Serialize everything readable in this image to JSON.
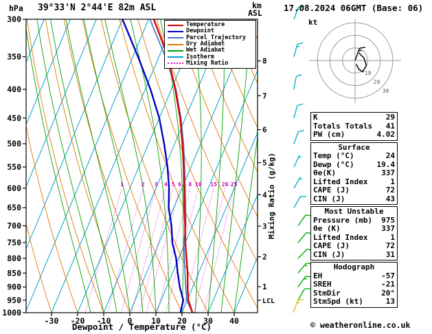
{
  "header": {
    "pressure_unit": "hPa",
    "title": "39°33'N 2°44'E 82m ASL",
    "km_label": "km",
    "asl_label": "ASL",
    "datetime": "17.08.2024 06GMT (Base: 06)"
  },
  "chart_data": {
    "type": "skewt_log_p",
    "title": "39°33'N 2°44'E 82m ASL",
    "xlabel": "Dewpoint / Temperature (°C)",
    "pressure_ticks": [
      300,
      350,
      400,
      450,
      500,
      550,
      600,
      650,
      700,
      750,
      800,
      850,
      900,
      950,
      1000
    ],
    "temp_ticks": [
      -30,
      -20,
      -10,
      0,
      10,
      20,
      30,
      40
    ],
    "pressure_range": [
      300,
      1000
    ],
    "km_ticks": [
      1,
      2,
      3,
      4,
      5,
      6,
      7,
      8
    ],
    "lcl_label": "LCL",
    "lcl_pressure": 950,
    "mixing_ratio_label": "Mixing Ratio (g/kg)",
    "mixing_ratio_values": [
      1,
      2,
      3,
      4,
      5,
      6,
      8,
      10,
      15,
      20,
      25
    ],
    "isotherm_step": 10,
    "colors": {
      "temperature": "#dd0000",
      "dewpoint": "#0000bb",
      "parcel": "#4477cc",
      "dry_adiabat": "#dd7700",
      "wet_adiabat": "#00a000",
      "isotherm": "#00a0c8",
      "mixing_ratio": "#cc00bb",
      "barb_upper": "#00b4c8",
      "barb_low": "#00aa00",
      "barb_sfc": "#d4c800"
    },
    "legend": [
      {
        "label": "Temperature",
        "color": "#dd0000",
        "style": "solid"
      },
      {
        "label": "Dewpoint",
        "color": "#0000bb",
        "style": "solid"
      },
      {
        "label": "Parcel Trajectory",
        "color": "#4477cc",
        "style": "solid"
      },
      {
        "label": "Dry Adiabat",
        "color": "#dd7700",
        "style": "solid"
      },
      {
        "label": "Wet Adiabat",
        "color": "#00a000",
        "style": "solid"
      },
      {
        "label": "Isotherm",
        "color": "#00a0c8",
        "style": "solid"
      },
      {
        "label": "Mixing Ratio",
        "color": "#cc00bb",
        "style": "dotted"
      }
    ],
    "sounding": {
      "pressure": [
        1000,
        950,
        900,
        850,
        800,
        750,
        700,
        650,
        600,
        550,
        500,
        450,
        400,
        350,
        300
      ],
      "temperature": [
        24,
        20.4,
        18,
        15.8,
        13,
        10,
        7.2,
        4,
        0.8,
        -2.8,
        -7,
        -12,
        -18.5,
        -26.5,
        -38
      ],
      "dewpoint": [
        19.4,
        18.5,
        15,
        12,
        9,
        5,
        2,
        -2,
        -5,
        -9,
        -14,
        -20,
        -28,
        -38,
        -50
      ]
    },
    "parcel": {
      "pressure": [
        1000,
        950,
        900,
        850,
        800,
        750,
        700,
        650,
        600,
        550,
        500,
        450,
        400,
        350,
        300
      ],
      "temperature": [
        24,
        19.8,
        17.3,
        14.8,
        12.2,
        9.4,
        7.5,
        4.5,
        1.2,
        -2.4,
        -6.6,
        -11.7,
        -18.2,
        -27.5,
        -39.5
      ]
    },
    "wind_barbs": [
      {
        "p": 300,
        "spd": 15,
        "dir": 20,
        "level": "upper"
      },
      {
        "p": 350,
        "spd": 15,
        "dir": 15,
        "level": "upper"
      },
      {
        "p": 400,
        "spd": 10,
        "dir": 10,
        "level": "upper"
      },
      {
        "p": 450,
        "spd": 10,
        "dir": 15,
        "level": "upper"
      },
      {
        "p": 500,
        "spd": 10,
        "dir": 20,
        "level": "upper"
      },
      {
        "p": 550,
        "spd": 5,
        "dir": 25,
        "level": "upper"
      },
      {
        "p": 600,
        "spd": 5,
        "dir": 30,
        "level": "upper"
      },
      {
        "p": 650,
        "spd": 10,
        "dir": 30,
        "level": "upper"
      },
      {
        "p": 700,
        "spd": 10,
        "dir": 35,
        "level": "low"
      },
      {
        "p": 750,
        "spd": 10,
        "dir": 40,
        "level": "low"
      },
      {
        "p": 800,
        "spd": 10,
        "dir": 45,
        "level": "low"
      },
      {
        "p": 850,
        "spd": 15,
        "dir": 40,
        "level": "low"
      },
      {
        "p": 900,
        "spd": 15,
        "dir": 35,
        "level": "low"
      },
      {
        "p": 950,
        "spd": 10,
        "dir": 30,
        "level": "low"
      },
      {
        "p": 1000,
        "spd": 13,
        "dir": 20,
        "level": "sfc"
      }
    ],
    "hodograph": {
      "unit_label": "kt",
      "rings": [
        10,
        20,
        30
      ],
      "storm_dir": 20,
      "storm_spd": 13,
      "trace_u": [
        1,
        3,
        6,
        9,
        7,
        3
      ],
      "trace_v": [
        -3,
        -7,
        -9,
        -4,
        2,
        6
      ]
    }
  },
  "panels": {
    "indices": {
      "rows": [
        {
          "label": "K",
          "value": "29"
        },
        {
          "label": "Totals Totals",
          "value": "41"
        },
        {
          "label": "PW (cm)",
          "value": "4.02"
        }
      ]
    },
    "surface": {
      "title": "Surface",
      "rows": [
        {
          "label": "Temp (°C)",
          "value": "24"
        },
        {
          "label": "Dewp (°C)",
          "value": "19.4"
        },
        {
          "label": "θe(K)",
          "value": "337"
        },
        {
          "label": "Lifted Index",
          "value": "1"
        },
        {
          "label": "CAPE (J)",
          "value": "72"
        },
        {
          "label": "CIN (J)",
          "value": "43"
        }
      ]
    },
    "most_unstable": {
      "title": "Most Unstable",
      "rows": [
        {
          "label": "Pressure (mb)",
          "value": "975"
        },
        {
          "label": "θe (K)",
          "value": "337"
        },
        {
          "label": "Lifted Index",
          "value": "1"
        },
        {
          "label": "CAPE (J)",
          "value": "72"
        },
        {
          "label": "CIN (J)",
          "value": "31"
        }
      ]
    },
    "hodograph_stats": {
      "title": "Hodograph",
      "rows": [
        {
          "label": "EH",
          "value": "-57"
        },
        {
          "label": "SREH",
          "value": "-21"
        },
        {
          "label": "StmDir",
          "value": "20°"
        },
        {
          "label": "StmSpd (kt)",
          "value": "13"
        }
      ]
    }
  },
  "footer": {
    "copyright": "© weatheronline.co.uk"
  }
}
